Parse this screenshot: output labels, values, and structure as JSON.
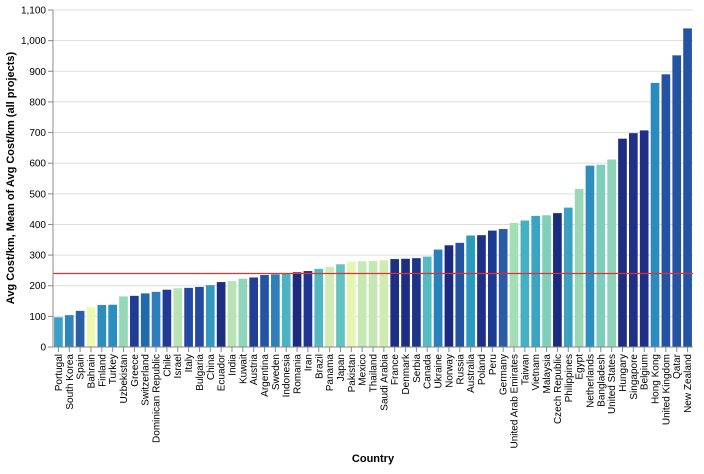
{
  "chart_data": {
    "type": "bar",
    "xlabel": "Country",
    "ylabel": "Avg Cost/km, Mean of Avg Cost/km (all projects)",
    "ylim": [
      0,
      1100
    ],
    "yticks": [
      0,
      100,
      200,
      300,
      400,
      500,
      600,
      700,
      800,
      900,
      1000,
      1100
    ],
    "ytick_labels": [
      "0",
      "100",
      "200",
      "300",
      "400",
      "500",
      "600",
      "700",
      "800",
      "900",
      "1,000",
      "1,100"
    ],
    "grid": true,
    "mean_rule": 240,
    "mean_rule_color": "#e03030",
    "categories": [
      "Portugal",
      "South Korea",
      "Spain",
      "Bahrain",
      "Finland",
      "Turkey",
      "Uzbekistan",
      "Greece",
      "Switzerland",
      "Dominican Republic",
      "Chile",
      "Israel",
      "Italy",
      "Bulgaria",
      "China",
      "Ecuador",
      "India",
      "Kuwait",
      "Austria",
      "Argentina",
      "Sweden",
      "Indonesia",
      "Romania",
      "Iran",
      "Brazil",
      "Panama",
      "Japan",
      "Pakistan",
      "Mexico",
      "Thailand",
      "Saudi Arabia",
      "France",
      "Denmark",
      "Serbia",
      "Canada",
      "Ukraine",
      "Norway",
      "Russia",
      "Australia",
      "Poland",
      "Peru",
      "Germany",
      "United Arab Emirates",
      "Taiwan",
      "Vietnam",
      "Malaysia",
      "Czech Republic",
      "Philippines",
      "Egypt",
      "Netherlands",
      "Bangladesh",
      "United States",
      "Hungary",
      "Singapore",
      "Belgium",
      "Hong Kong",
      "United Kingdom",
      "Qatar",
      "New Zealand"
    ],
    "values": [
      97,
      104,
      118,
      130,
      137,
      138,
      165,
      167,
      175,
      180,
      187,
      192,
      193,
      196,
      202,
      212,
      215,
      223,
      227,
      235,
      237,
      240,
      244,
      248,
      255,
      262,
      270,
      279,
      280,
      281,
      283,
      287,
      288,
      290,
      295,
      318,
      332,
      340,
      364,
      365,
      380,
      385,
      405,
      413,
      428,
      430,
      437,
      455,
      516,
      592,
      595,
      612,
      680,
      698,
      707,
      862,
      890,
      952,
      1040
    ],
    "colors": [
      "#3ba0c4",
      "#3086bc",
      "#2a5fa6",
      "#edf8b1",
      "#2c8dbf",
      "#2c8dbf",
      "#94d7b9",
      "#203c95",
      "#1f6aac",
      "#2f7dba",
      "#213a94",
      "#b8e4b4",
      "#2549a0",
      "#2549a0",
      "#3498c2",
      "#1c2e80",
      "#b7e3b5",
      "#8fd5ba",
      "#223f96",
      "#2455a3",
      "#2f7fbb",
      "#4cb3c3",
      "#1c2b7e",
      "#1f3692",
      "#52b9c3",
      "#d1ecb2",
      "#64c2c0",
      "#e7f5b2",
      "#c6e8b3",
      "#c5e7b4",
      "#d0ebb2",
      "#1d2f82",
      "#1d2f82",
      "#1e3489",
      "#54bac3",
      "#2a80bb",
      "#1c2a80",
      "#2551a1",
      "#299bc1",
      "#212f88",
      "#1d3a92",
      "#2b5aa6",
      "#a5ddb7",
      "#46b0c3",
      "#3ba4c2",
      "#7fcfbb",
      "#1b2b7e",
      "#3da1c2",
      "#9ad9b8",
      "#2d8fbf",
      "#7fcebc",
      "#8ed4ba",
      "#1e2c84",
      "#1f2f8a",
      "#1f2f86",
      "#2b8abf",
      "#2552a2",
      "#2453a2",
      "#2254a3"
    ]
  }
}
